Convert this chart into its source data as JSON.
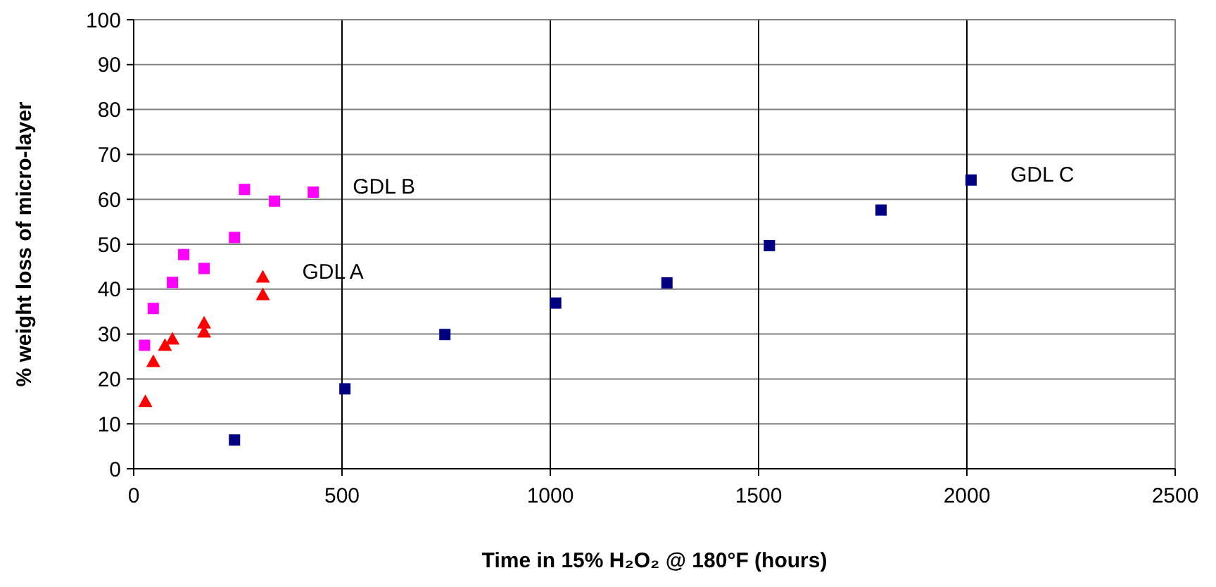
{
  "chart_data": {
    "type": "scatter",
    "xlabel": "Time in 15% H₂O₂ @ 180°F (hours)",
    "ylabel": "% weight loss of micro-layer",
    "xlim": [
      0,
      2500
    ],
    "xticks": [
      0,
      500,
      1000,
      1500,
      2000,
      2500
    ],
    "ylim": [
      0,
      100
    ],
    "yticks": [
      0,
      10,
      20,
      30,
      40,
      50,
      60,
      70,
      80,
      90,
      100
    ],
    "grid": true,
    "series": [
      {
        "name": "GDL B",
        "color": "#ff00ff",
        "marker": "square",
        "x": [
          26,
          47,
          93,
          120,
          169,
          242,
          266,
          338,
          431
        ],
        "values": [
          27.5,
          35.7,
          41.5,
          47.7,
          44.6,
          51.5,
          62.2,
          59.6,
          61.6
        ]
      },
      {
        "name": "GDL A",
        "color": "#ff0000",
        "marker": "triangle",
        "x": [
          28,
          47,
          75,
          93,
          169,
          169,
          310,
          310
        ],
        "values": [
          15,
          23.9,
          27.5,
          28.9,
          32.5,
          30.5,
          42.7,
          38.8
        ]
      },
      {
        "name": "GDL C",
        "color": "#000080",
        "marker": "square",
        "x": [
          242,
          507,
          747,
          1013,
          1280,
          1526,
          1794,
          2010
        ],
        "values": [
          6.4,
          17.8,
          29.9,
          36.9,
          41.4,
          49.7,
          57.6,
          64.3
        ]
      }
    ]
  }
}
